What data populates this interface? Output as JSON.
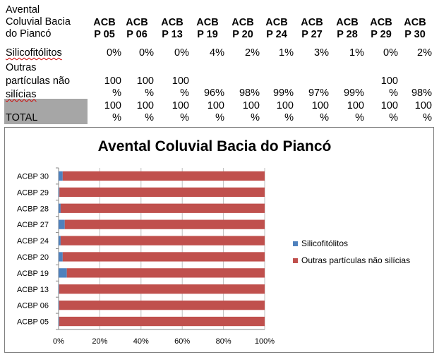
{
  "table": {
    "corner_lines": [
      "Avental",
      "Coluvial Bacia",
      "do Piancó"
    ],
    "columns": [
      [
        "ACB",
        "P 05"
      ],
      [
        "ACB",
        "P 06"
      ],
      [
        "ACB",
        "P 13"
      ],
      [
        "ACB",
        "P 19"
      ],
      [
        "ACB",
        "P 20"
      ],
      [
        "ACB",
        "P 24"
      ],
      [
        "ACB",
        "P 27"
      ],
      [
        "ACB",
        "P 28"
      ],
      [
        "ACB",
        "P 29"
      ],
      [
        "ACB",
        "P 30"
      ]
    ],
    "row1_label": "Silicofitólitos",
    "row1_values": [
      "0%",
      "0%",
      "0%",
      "4%",
      "2%",
      "1%",
      "3%",
      "1%",
      "0%",
      "2%"
    ],
    "row2_label_lines": [
      "Outras",
      "partículas não",
      "silícias"
    ],
    "row2_values": [
      [
        "100",
        "%"
      ],
      [
        "100",
        "%"
      ],
      [
        "100",
        "%"
      ],
      [
        "",
        "96%"
      ],
      [
        "",
        "98%"
      ],
      [
        "",
        "99%"
      ],
      [
        "",
        "97%"
      ],
      [
        "",
        "99%"
      ],
      [
        "100",
        "%"
      ],
      [
        "",
        "98%"
      ]
    ],
    "total_label": "TOTAL",
    "total_values": [
      [
        "100",
        "%"
      ],
      [
        "100",
        "%"
      ],
      [
        "100",
        "%"
      ],
      [
        "100",
        "%"
      ],
      [
        "100",
        "%"
      ],
      [
        "100",
        "%"
      ],
      [
        "100",
        "%"
      ],
      [
        "100",
        "%"
      ],
      [
        "100",
        "%"
      ],
      [
        "100",
        "%"
      ]
    ]
  },
  "colors": {
    "series1": "#4f81bd",
    "series2": "#c0504d",
    "grid": "#bfbfbf",
    "border": "#7f7f7f"
  },
  "chart_data": {
    "type": "bar",
    "orientation": "horizontal",
    "stacked": "percent",
    "title": "Avental Coluvial Bacia do Piancó",
    "categories": [
      "ACBP 05",
      "ACBP 06",
      "ACBP 13",
      "ACBP 19",
      "ACBP 20",
      "ACBP 24",
      "ACBP 27",
      "ACBP 28",
      "ACBP 29",
      "ACBP 30"
    ],
    "series": [
      {
        "name": "Silicofitólitos",
        "values": [
          0.3,
          0.3,
          0.3,
          4,
          2,
          1,
          3,
          1,
          0.4,
          2
        ]
      },
      {
        "name": "Outras partículas não silícias",
        "values": [
          99.7,
          99.7,
          99.7,
          96,
          98,
          99,
          97,
          99,
          99.6,
          98
        ]
      }
    ],
    "xticks": [
      "0%",
      "20%",
      "40%",
      "60%",
      "80%",
      "100%"
    ],
    "xlim": [
      0,
      100
    ],
    "grid": "vertical",
    "legend": "right"
  }
}
